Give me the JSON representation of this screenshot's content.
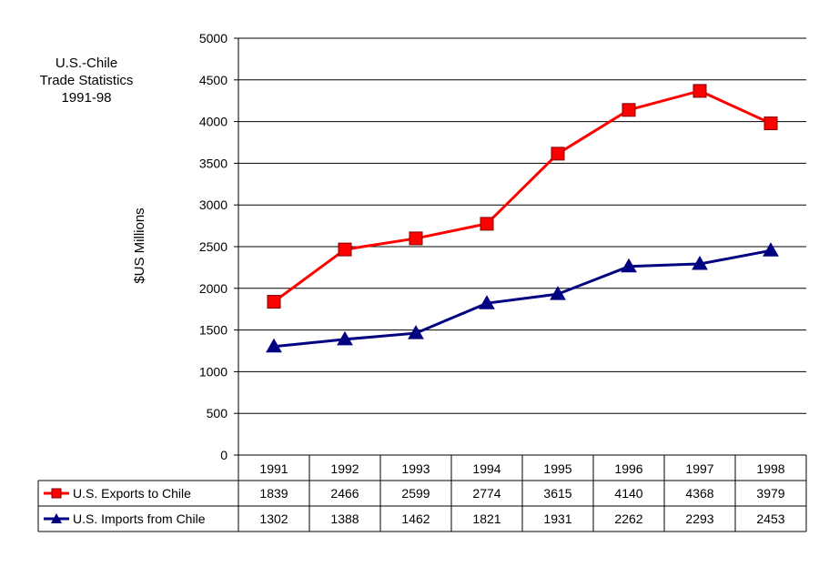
{
  "chart_data": {
    "type": "line",
    "title_lines": [
      "U.S.-Chile",
      "Trade Statistics",
      "1991-98"
    ],
    "ylabel": "$US Millions",
    "xlabel": "",
    "ylim": [
      0,
      5000
    ],
    "yticks": [
      0,
      500,
      1000,
      1500,
      2000,
      2500,
      3000,
      3500,
      4000,
      4500,
      5000
    ],
    "categories": [
      "1991",
      "1992",
      "1993",
      "1994",
      "1995",
      "1996",
      "1997",
      "1998"
    ],
    "grid": true,
    "legend": "data-table-left",
    "series": [
      {
        "name": "U.S. Exports to Chile",
        "marker": "square",
        "color": "#ff0000",
        "values": [
          1839,
          2466,
          2599,
          2774,
          3615,
          4140,
          4368,
          3979
        ]
      },
      {
        "name": "U.S. Imports from Chile",
        "marker": "triangle",
        "color": "#000080",
        "values": [
          1302,
          1388,
          1462,
          1821,
          1931,
          2262,
          2293,
          2453
        ]
      }
    ]
  }
}
